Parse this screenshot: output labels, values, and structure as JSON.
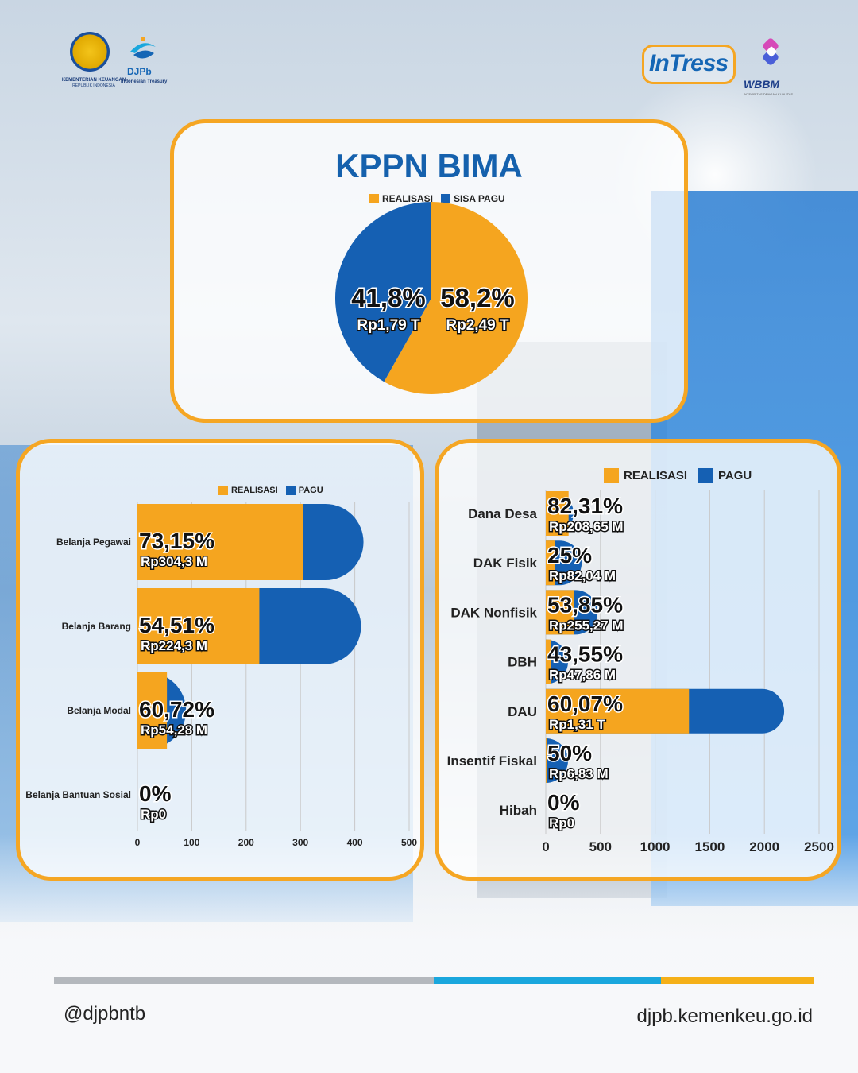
{
  "colors": {
    "realisasi": "#f5a51f",
    "pagu": "#1560b3",
    "card_border": "#f5a623",
    "title_blue": "#1561ad",
    "footer_gray": "#b4b8bd",
    "footer_cyan": "#1aa7dd",
    "footer_orange": "#f5b018"
  },
  "header": {
    "kemenkeu_line1": "KEMENTERIAN KEUANGAN",
    "kemenkeu_line2": "REPUBLIK INDONESIA",
    "djpb_name": "DJPb",
    "djpb_sub": "Indonesian Treasury",
    "intress": "InTress",
    "wbbm": "WBBM",
    "wbbm_sub": "INTEGRITAS DENGAN KUALITAS"
  },
  "kppn": {
    "title": "KPPN BIMA",
    "legend": [
      "REALISASI",
      "SISA PAGU"
    ]
  },
  "left_chart": {
    "legend": [
      "REALISASI",
      "PAGU"
    ]
  },
  "right_chart": {
    "legend": [
      "REALISASI",
      "PAGU"
    ]
  },
  "chart_data": [
    {
      "type": "pie",
      "title": "KPPN BIMA",
      "slices": [
        {
          "name": "REALISASI",
          "percent": 58.2,
          "label_pct": "58,2%",
          "label_value": "Rp2,49 T"
        },
        {
          "name": "SISA PAGU",
          "percent": 41.8,
          "label_pct": "41,8%",
          "label_value": "Rp1,79 T"
        }
      ]
    },
    {
      "type": "bar",
      "orientation": "horizontal",
      "categories": [
        "Belanja Pegawai",
        "Belanja Barang",
        "Belanja Modal",
        "Belanja Bantuan Sosial"
      ],
      "series": [
        {
          "name": "REALISASI",
          "values": [
            304.3,
            224.3,
            54.28,
            0
          ]
        },
        {
          "name": "PAGU",
          "values": [
            416,
            411.5,
            89.4,
            0
          ]
        }
      ],
      "pct_labels": [
        "73,15%",
        "54,51%",
        "60,72%",
        "0%"
      ],
      "value_labels": [
        "Rp304,3 M",
        "Rp224,3 M",
        "Rp54,28 M",
        "Rp0"
      ],
      "xlim": [
        0,
        500
      ],
      "xticks": [
        0,
        100,
        200,
        300,
        400,
        500
      ]
    },
    {
      "type": "bar",
      "orientation": "horizontal",
      "categories": [
        "Dana Desa",
        "DAK Fisik",
        "DAK Nonfisik",
        "DBH",
        "DAU",
        "Insentif Fiskal",
        "Hibah"
      ],
      "series": [
        {
          "name": "REALISASI",
          "values": [
            208.65,
            82.04,
            255.27,
            47.86,
            1310,
            6.83,
            0
          ]
        },
        {
          "name": "PAGU",
          "values": [
            253.5,
            328.2,
            474.1,
            109.9,
            2180.8,
            13.66,
            0
          ]
        }
      ],
      "pct_labels": [
        "82,31%",
        "25%",
        "53,85%",
        "43,55%",
        "60,07%",
        "50%",
        "0%"
      ],
      "value_labels": [
        "Rp208,65 M",
        "Rp82,04 M",
        "Rp255,27 M",
        "Rp47,86 M",
        "Rp1,31 T",
        "Rp6,83 M",
        "Rp0"
      ],
      "xlim": [
        0,
        2500
      ],
      "xticks": [
        0,
        500,
        1000,
        1500,
        2000,
        2500
      ]
    }
  ],
  "footer": {
    "handle": "@djpbntb",
    "website": "djpb.kemenkeu.go.id"
  }
}
